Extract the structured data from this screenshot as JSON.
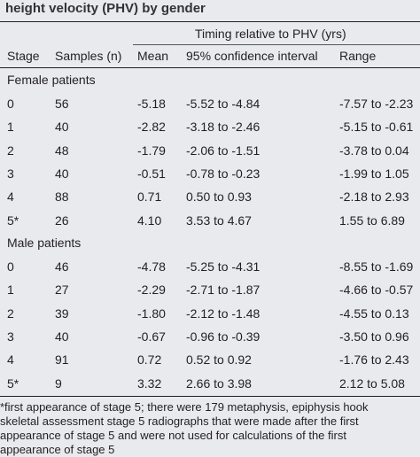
{
  "header": {
    "title": "height velocity (PHV) by gender"
  },
  "table": {
    "group_header": "Timing relative to PHV (yrs)",
    "columns": [
      "Stage",
      "Samples (n)",
      "Mean",
      "95% confidence interval",
      "Range"
    ],
    "groups": [
      {
        "label": "Female patients",
        "rows": [
          [
            "0",
            "56",
            "-5.18",
            "-5.52 to -4.84",
            "-7.57 to -2.23"
          ],
          [
            "1",
            "40",
            "-2.82",
            "-3.18 to -2.46",
            "-5.15 to -0.61"
          ],
          [
            "2",
            "48",
            "-1.79",
            "-2.06 to -1.51",
            "-3.78 to 0.04"
          ],
          [
            "3",
            "40",
            "-0.51",
            "-0.78 to -0.23",
            "-1.99 to 1.05"
          ],
          [
            "4",
            "88",
            "0.71",
            "0.50 to 0.93",
            "-2.18 to 2.93"
          ],
          [
            "5*",
            "26",
            "4.10",
            "3.53 to 4.67",
            "1.55 to 6.89"
          ]
        ]
      },
      {
        "label": "Male patients",
        "rows": [
          [
            "0",
            "46",
            "-4.78",
            "-5.25 to -4.31",
            "-8.55 to -1.69"
          ],
          [
            "1",
            "27",
            "-2.29",
            "-2.71 to -1.87",
            "-4.66 to -0.57"
          ],
          [
            "2",
            "39",
            "-1.80",
            "-2.12 to -1.48",
            "-4.55 to 0.13"
          ],
          [
            "3",
            "40",
            "-0.67",
            "-0.96 to -0.39",
            "-3.50 to 0.96"
          ],
          [
            "4",
            "91",
            "0.72",
            "0.52 to 0.92",
            "-1.76 to 2.43"
          ],
          [
            "5*",
            "9",
            "3.32",
            "2.66 to 3.98",
            "2.12 to 5.08"
          ]
        ]
      }
    ]
  },
  "footnote": [
    "*first appearance of stage 5; there were 179 metaphysis, epiphysis hook",
    "skeletal assessment stage 5 radiographs that were made after the first",
    "appearance of stage 5 and were not used for calculations of the first",
    "appearance of stage 5"
  ]
}
